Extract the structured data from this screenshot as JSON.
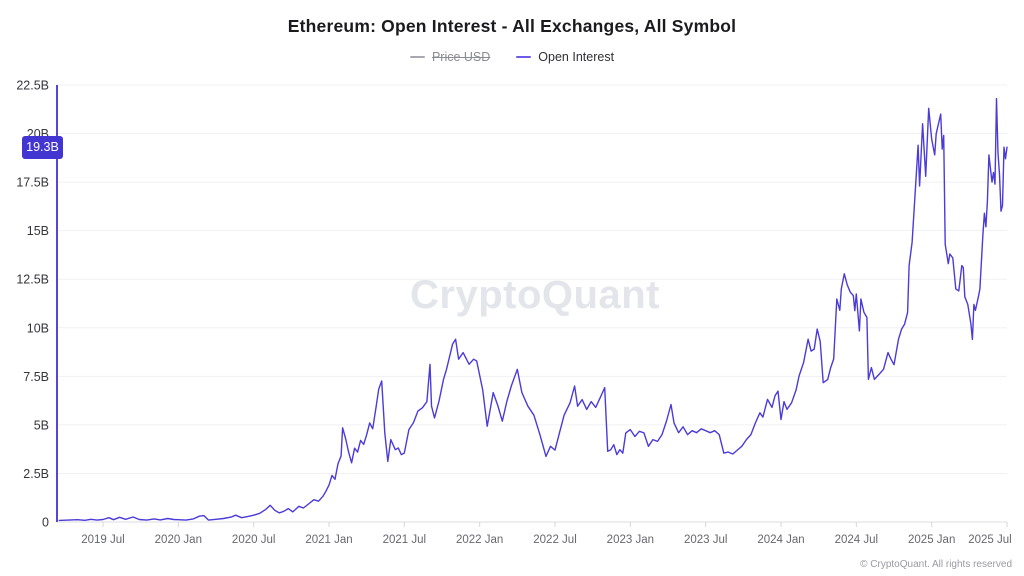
{
  "header": {
    "title": "Ethereum: Open Interest - All Exchanges, All Symbol"
  },
  "legend": {
    "items": [
      {
        "label": "Price USD",
        "disabled": true,
        "color": "#a8a8b0"
      },
      {
        "label": "Open Interest",
        "disabled": false,
        "color": "#6e5ce8"
      }
    ]
  },
  "watermark": "CryptoQuant",
  "footer": {
    "copyright": "© CryptoQuant. All rights reserved"
  },
  "current_value": {
    "label": "19.3B",
    "value": 19.3,
    "badge_color": "#4335d2"
  },
  "chart_data": {
    "type": "line",
    "title": "Ethereum: Open Interest - All Exchanges, All Symbol",
    "unit": "USD billions",
    "grid": true,
    "legend_position": "top",
    "axis_color": "#5347d6",
    "grid_color": "#f0f1f4",
    "baseline_color": "#dcdce2",
    "ylim": [
      0,
      22.5
    ],
    "xlim": [
      2019.18,
      2025.55
    ],
    "y_ticks": [
      {
        "v": 0,
        "label": "0"
      },
      {
        "v": 2.5,
        "label": "2.5B"
      },
      {
        "v": 5,
        "label": "5B"
      },
      {
        "v": 7.5,
        "label": "7.5B"
      },
      {
        "v": 10,
        "label": "10B"
      },
      {
        "v": 12.5,
        "label": "12.5B"
      },
      {
        "v": 15,
        "label": "15B"
      },
      {
        "v": 17.5,
        "label": "17.5B"
      },
      {
        "v": 20,
        "label": "20B"
      },
      {
        "v": 22.5,
        "label": "22.5B"
      }
    ],
    "x_ticks": [
      {
        "t": 2019.5,
        "label": "2019 Jul"
      },
      {
        "t": 2020.0,
        "label": "2020 Jan"
      },
      {
        "t": 2020.5,
        "label": "2020 Jul"
      },
      {
        "t": 2021.0,
        "label": "2021 Jan"
      },
      {
        "t": 2021.5,
        "label": "2021 Jul"
      },
      {
        "t": 2022.0,
        "label": "2022 Jan"
      },
      {
        "t": 2022.5,
        "label": "2022 Jul"
      },
      {
        "t": 2023.0,
        "label": "2023 Jan"
      },
      {
        "t": 2023.5,
        "label": "2023 Jul"
      },
      {
        "t": 2024.0,
        "label": "2024 Jan"
      },
      {
        "t": 2024.5,
        "label": "2024 Jul"
      },
      {
        "t": 2025.0,
        "label": "2025 Jan"
      },
      {
        "t": 2025.5,
        "label": "2025 Jul"
      }
    ],
    "disabled_series": [
      "Price USD"
    ],
    "series": [
      {
        "name": "Open Interest",
        "color": "#4b3bd8",
        "points": [
          [
            2019.21,
            0.08
          ],
          [
            2019.27,
            0.1
          ],
          [
            2019.33,
            0.12
          ],
          [
            2019.38,
            0.09
          ],
          [
            2019.42,
            0.14
          ],
          [
            2019.46,
            0.1
          ],
          [
            2019.5,
            0.13
          ],
          [
            2019.54,
            0.22
          ],
          [
            2019.57,
            0.12
          ],
          [
            2019.61,
            0.24
          ],
          [
            2019.65,
            0.14
          ],
          [
            2019.7,
            0.26
          ],
          [
            2019.74,
            0.13
          ],
          [
            2019.79,
            0.1
          ],
          [
            2019.84,
            0.16
          ],
          [
            2019.88,
            0.11
          ],
          [
            2019.93,
            0.18
          ],
          [
            2019.97,
            0.13
          ],
          [
            2020.0,
            0.12
          ],
          [
            2020.05,
            0.1
          ],
          [
            2020.1,
            0.16
          ],
          [
            2020.14,
            0.3
          ],
          [
            2020.17,
            0.33
          ],
          [
            2020.2,
            0.1
          ],
          [
            2020.25,
            0.14
          ],
          [
            2020.3,
            0.18
          ],
          [
            2020.35,
            0.25
          ],
          [
            2020.38,
            0.35
          ],
          [
            2020.42,
            0.22
          ],
          [
            2020.46,
            0.28
          ],
          [
            2020.5,
            0.35
          ],
          [
            2020.54,
            0.45
          ],
          [
            2020.58,
            0.65
          ],
          [
            2020.61,
            0.86
          ],
          [
            2020.64,
            0.6
          ],
          [
            2020.67,
            0.47
          ],
          [
            2020.7,
            0.55
          ],
          [
            2020.73,
            0.69
          ],
          [
            2020.76,
            0.52
          ],
          [
            2020.8,
            0.81
          ],
          [
            2020.83,
            0.72
          ],
          [
            2020.86,
            0.9
          ],
          [
            2020.9,
            1.15
          ],
          [
            2020.93,
            1.07
          ],
          [
            2020.96,
            1.33
          ],
          [
            2020.98,
            1.59
          ],
          [
            2021.0,
            1.9
          ],
          [
            2021.02,
            2.4
          ],
          [
            2021.04,
            2.2
          ],
          [
            2021.06,
            3.0
          ],
          [
            2021.08,
            3.4
          ],
          [
            2021.09,
            4.85
          ],
          [
            2021.11,
            4.3
          ],
          [
            2021.13,
            3.6
          ],
          [
            2021.15,
            3.05
          ],
          [
            2021.17,
            3.8
          ],
          [
            2021.19,
            3.6
          ],
          [
            2021.21,
            4.2
          ],
          [
            2021.23,
            4.0
          ],
          [
            2021.25,
            4.5
          ],
          [
            2021.27,
            5.1
          ],
          [
            2021.29,
            4.8
          ],
          [
            2021.31,
            5.79
          ],
          [
            2021.33,
            6.83
          ],
          [
            2021.35,
            7.26
          ],
          [
            2021.37,
            4.59
          ],
          [
            2021.39,
            3.12
          ],
          [
            2021.41,
            4.24
          ],
          [
            2021.44,
            3.72
          ],
          [
            2021.46,
            3.81
          ],
          [
            2021.48,
            3.47
          ],
          [
            2021.5,
            3.55
          ],
          [
            2021.53,
            4.76
          ],
          [
            2021.56,
            5.11
          ],
          [
            2021.59,
            5.71
          ],
          [
            2021.62,
            5.88
          ],
          [
            2021.65,
            6.2
          ],
          [
            2021.67,
            8.12
          ],
          [
            2021.68,
            5.97
          ],
          [
            2021.7,
            5.36
          ],
          [
            2021.73,
            6.22
          ],
          [
            2021.76,
            7.34
          ],
          [
            2021.78,
            7.86
          ],
          [
            2021.8,
            8.5
          ],
          [
            2021.82,
            9.16
          ],
          [
            2021.84,
            9.41
          ],
          [
            2021.86,
            8.38
          ],
          [
            2021.89,
            8.72
          ],
          [
            2021.93,
            8.12
          ],
          [
            2021.96,
            8.38
          ],
          [
            2021.98,
            8.29
          ],
          [
            2022.02,
            6.8
          ],
          [
            2022.05,
            4.93
          ],
          [
            2022.09,
            6.66
          ],
          [
            2022.12,
            6.0
          ],
          [
            2022.15,
            5.19
          ],
          [
            2022.18,
            6.2
          ],
          [
            2022.21,
            7.0
          ],
          [
            2022.25,
            7.86
          ],
          [
            2022.28,
            6.66
          ],
          [
            2022.32,
            5.96
          ],
          [
            2022.36,
            5.5
          ],
          [
            2022.4,
            4.5
          ],
          [
            2022.44,
            3.38
          ],
          [
            2022.47,
            3.9
          ],
          [
            2022.5,
            3.7
          ],
          [
            2022.53,
            4.6
          ],
          [
            2022.56,
            5.5
          ],
          [
            2022.6,
            6.14
          ],
          [
            2022.63,
            7.0
          ],
          [
            2022.65,
            5.96
          ],
          [
            2022.68,
            6.3
          ],
          [
            2022.71,
            5.8
          ],
          [
            2022.74,
            6.2
          ],
          [
            2022.77,
            5.9
          ],
          [
            2022.8,
            6.4
          ],
          [
            2022.83,
            6.92
          ],
          [
            2022.85,
            3.64
          ],
          [
            2022.87,
            3.72
          ],
          [
            2022.89,
            3.98
          ],
          [
            2022.91,
            3.47
          ],
          [
            2022.93,
            3.72
          ],
          [
            2022.95,
            3.55
          ],
          [
            2022.97,
            4.59
          ],
          [
            2023.0,
            4.76
          ],
          [
            2023.03,
            4.4
          ],
          [
            2023.06,
            4.67
          ],
          [
            2023.09,
            4.59
          ],
          [
            2023.12,
            3.9
          ],
          [
            2023.15,
            4.24
          ],
          [
            2023.18,
            4.15
          ],
          [
            2023.21,
            4.5
          ],
          [
            2023.24,
            5.2
          ],
          [
            2023.27,
            6.05
          ],
          [
            2023.29,
            5.1
          ],
          [
            2023.32,
            4.6
          ],
          [
            2023.35,
            4.9
          ],
          [
            2023.38,
            4.5
          ],
          [
            2023.41,
            4.7
          ],
          [
            2023.44,
            4.6
          ],
          [
            2023.47,
            4.8
          ],
          [
            2023.5,
            4.7
          ],
          [
            2023.53,
            4.6
          ],
          [
            2023.56,
            4.7
          ],
          [
            2023.59,
            4.5
          ],
          [
            2023.62,
            3.55
          ],
          [
            2023.65,
            3.6
          ],
          [
            2023.68,
            3.5
          ],
          [
            2023.71,
            3.7
          ],
          [
            2023.74,
            3.9
          ],
          [
            2023.77,
            4.24
          ],
          [
            2023.8,
            4.5
          ],
          [
            2023.83,
            5.1
          ],
          [
            2023.86,
            5.62
          ],
          [
            2023.88,
            5.4
          ],
          [
            2023.91,
            6.31
          ],
          [
            2023.94,
            5.9
          ],
          [
            2023.96,
            6.5
          ],
          [
            2023.98,
            6.74
          ],
          [
            2024.0,
            5.28
          ],
          [
            2024.02,
            6.2
          ],
          [
            2024.04,
            5.8
          ],
          [
            2024.07,
            6.14
          ],
          [
            2024.1,
            6.8
          ],
          [
            2024.12,
            7.52
          ],
          [
            2024.15,
            8.21
          ],
          [
            2024.18,
            9.41
          ],
          [
            2024.2,
            8.8
          ],
          [
            2024.22,
            8.9
          ],
          [
            2024.24,
            9.93
          ],
          [
            2024.26,
            9.3
          ],
          [
            2024.28,
            7.17
          ],
          [
            2024.31,
            7.34
          ],
          [
            2024.33,
            7.95
          ],
          [
            2024.35,
            8.4
          ],
          [
            2024.37,
            11.48
          ],
          [
            2024.39,
            10.9
          ],
          [
            2024.4,
            12.0
          ],
          [
            2024.42,
            12.78
          ],
          [
            2024.44,
            12.2
          ],
          [
            2024.46,
            11.83
          ],
          [
            2024.48,
            11.66
          ],
          [
            2024.49,
            10.88
          ],
          [
            2024.5,
            11.74
          ],
          [
            2024.52,
            9.84
          ],
          [
            2024.53,
            11.48
          ],
          [
            2024.55,
            10.8
          ],
          [
            2024.57,
            10.53
          ],
          [
            2024.58,
            7.34
          ],
          [
            2024.6,
            7.95
          ],
          [
            2024.62,
            7.34
          ],
          [
            2024.65,
            7.6
          ],
          [
            2024.68,
            7.86
          ],
          [
            2024.71,
            8.72
          ],
          [
            2024.73,
            8.38
          ],
          [
            2024.75,
            8.1
          ],
          [
            2024.78,
            9.41
          ],
          [
            2024.8,
            9.93
          ],
          [
            2024.82,
            10.19
          ],
          [
            2024.84,
            10.79
          ],
          [
            2024.85,
            13.2
          ],
          [
            2024.87,
            14.4
          ],
          [
            2024.89,
            16.9
          ],
          [
            2024.91,
            19.4
          ],
          [
            2024.92,
            17.3
          ],
          [
            2024.94,
            20.5
          ],
          [
            2024.96,
            17.8
          ],
          [
            2024.98,
            21.3
          ],
          [
            2025.0,
            19.7
          ],
          [
            2025.02,
            18.9
          ],
          [
            2025.03,
            20.0
          ],
          [
            2025.06,
            21.0
          ],
          [
            2025.07,
            19.2
          ],
          [
            2025.08,
            19.9
          ],
          [
            2025.09,
            14.3
          ],
          [
            2025.11,
            13.3
          ],
          [
            2025.12,
            13.8
          ],
          [
            2025.14,
            13.6
          ],
          [
            2025.16,
            12.0
          ],
          [
            2025.18,
            11.9
          ],
          [
            2025.2,
            13.2
          ],
          [
            2025.21,
            13.1
          ],
          [
            2025.22,
            11.6
          ],
          [
            2025.24,
            11.2
          ],
          [
            2025.26,
            10.2
          ],
          [
            2025.27,
            9.4
          ],
          [
            2025.28,
            11.2
          ],
          [
            2025.29,
            10.9
          ],
          [
            2025.31,
            11.6
          ],
          [
            2025.32,
            12.0
          ],
          [
            2025.34,
            14.8
          ],
          [
            2025.35,
            15.9
          ],
          [
            2025.36,
            15.2
          ],
          [
            2025.37,
            16.5
          ],
          [
            2025.38,
            18.9
          ],
          [
            2025.4,
            17.5
          ],
          [
            2025.41,
            18.0
          ],
          [
            2025.42,
            17.4
          ],
          [
            2025.43,
            21.8
          ],
          [
            2025.44,
            19.0
          ],
          [
            2025.45,
            17.9
          ],
          [
            2025.46,
            16.0
          ],
          [
            2025.47,
            16.3
          ],
          [
            2025.48,
            19.3
          ],
          [
            2025.49,
            18.7
          ],
          [
            2025.5,
            19.3
          ]
        ]
      }
    ]
  }
}
